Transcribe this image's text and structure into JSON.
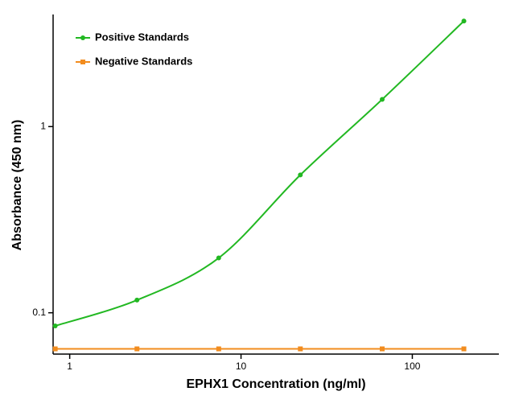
{
  "chart_data": {
    "type": "scatter",
    "x_label": "EPHX1 Concentration (ng/ml)",
    "y_label": "Absorbance (450 nm)",
    "xlog": true,
    "ylog": true,
    "xlim": [
      0.8,
      320
    ],
    "ylim": [
      0.06,
      4
    ],
    "xticks": [
      1,
      10,
      100
    ],
    "yticks": [
      0.1,
      1
    ],
    "legend": "upper left",
    "series": [
      {
        "name": "Positive Standards",
        "color": "#22b822",
        "marker": "circle",
        "curve": true,
        "x": [
          0.823,
          2.47,
          7.41,
          22.2,
          66.7,
          200
        ],
        "values": [
          0.085,
          0.117,
          0.197,
          0.55,
          1.4,
          3.69
        ]
      },
      {
        "name": "Negative Standards",
        "color": "#f28c1e",
        "marker": "square",
        "curve": true,
        "x": [
          0.823,
          2.47,
          7.41,
          22.2,
          66.7,
          200
        ],
        "values": [
          0.064,
          0.064,
          0.064,
          0.064,
          0.064,
          0.064
        ]
      }
    ]
  }
}
